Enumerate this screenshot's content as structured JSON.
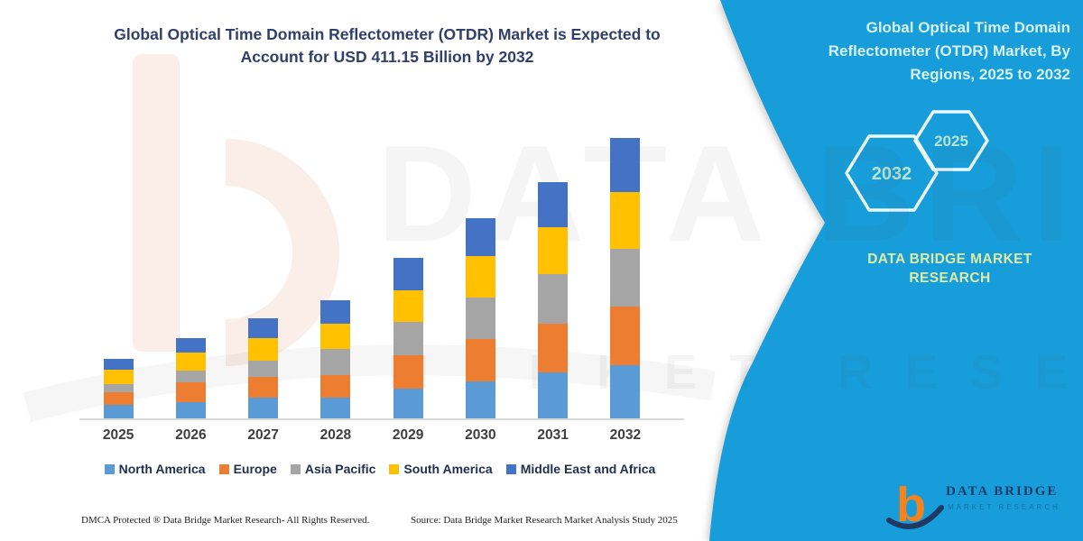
{
  "title": {
    "lines": [
      "Global Optical Time Domain Reflectometer (OTDR) Market is Expected to",
      "Account for USD 411.15 Billion by 2032"
    ]
  },
  "panel": {
    "heading_lines": [
      "Global Optical Time Domain",
      "Reflectometer (OTDR) Market, By",
      "Regions, 2025 to 2032"
    ],
    "hexagons": [
      "2032",
      "2025"
    ],
    "brand_lines": [
      "DATA BRIDGE MARKET",
      "RESEARCH"
    ],
    "bg_color": "#179DD9",
    "heading_color": "#D6F3FE",
    "hexagon_text_color": "#B7E4CF",
    "brand_color": "#DCECA6"
  },
  "chart_data": {
    "type": "bar",
    "stacked": true,
    "unit": "USD Billion",
    "title": "Global Optical Time Domain Reflectometer (OTDR) Market, By Regions, 2025 to 2032",
    "xlabel": "",
    "ylabel": "",
    "ylim": [
      0,
      430
    ],
    "grid": false,
    "legend_position": "bottom",
    "categories": [
      "2025",
      "2026",
      "2027",
      "2028",
      "2029",
      "2030",
      "2031",
      "2032"
    ],
    "series": [
      {
        "name": "North America",
        "color": "#5B9BD5",
        "values": [
          19.9,
          24.3,
          30.9,
          30.9,
          44.2,
          54.0,
          67.2,
          78.2
        ]
      },
      {
        "name": "Europe",
        "color": "#ED7D31",
        "values": [
          18.6,
          28.8,
          30.1,
          33.2,
          48.7,
          62.3,
          72.0,
          86.2
        ]
      },
      {
        "name": "Asia Pacific",
        "color": "#A5A5A5",
        "values": [
          12.3,
          17.6,
          23.9,
          37.6,
          48.7,
          60.6,
          72.9,
          83.5
        ]
      },
      {
        "name": "South America",
        "color": "#FFC000",
        "values": [
          19.9,
          26.5,
          32.2,
          37.6,
          46.4,
          61.0,
          68.6,
          83.5
        ]
      },
      {
        "name": "Middle East and Africa",
        "color": "#4472C4",
        "values": [
          16.8,
          21.2,
          29.6,
          34.0,
          47.7,
          56.1,
          66.3,
          79.75
        ]
      }
    ],
    "totals": [
      87.5,
      118.4,
      146.7,
      173.3,
      235.7,
      294.0,
      347.0,
      411.15
    ]
  },
  "footer": {
    "left": "DMCA Protected ® Data Bridge Market Research-  All Rights Reserved.",
    "source": "Source: Data Bridge Market Research  Market Analysis Study 2025"
  },
  "logo": {
    "mark": "b",
    "name": "DATA BRIDGE",
    "subtitle": "MARKET RESEARCH"
  },
  "watermark": {
    "text": "DATA BRIDGE",
    "subtext": "MARKET RESEARCH"
  }
}
